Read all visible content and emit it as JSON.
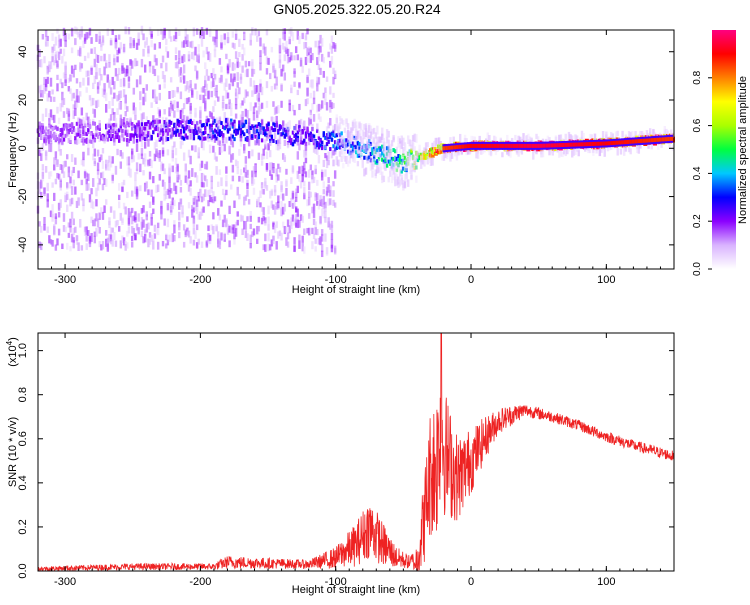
{
  "title": "GN05.2025.322.05.20.R24",
  "chart_data": [
    {
      "type": "heatmap",
      "name": "spectrogram",
      "xlabel": "Height of straight line (km)",
      "ylabel": "Frequency (Hz)",
      "xlim": [
        -320,
        150
      ],
      "ylim": [
        -50,
        49
      ],
      "xticks": [
        -300,
        -200,
        -100,
        0,
        100
      ],
      "yticks": [
        -40,
        -20,
        0,
        20,
        40
      ],
      "colorbar": {
        "label": "Normalized spectral amplitude",
        "range": [
          0.0,
          1.0
        ],
        "ticks": [
          0.0,
          0.2,
          0.4,
          0.6,
          0.8
        ],
        "tick_labels": [
          "0.0",
          "0.2",
          "0.4",
          "0.6",
          "0.8"
        ],
        "colors": [
          "#ffffff",
          "#d9b3ff",
          "#8b00ff",
          "#0000ff",
          "#00c8ff",
          "#00ff40",
          "#aaff00",
          "#ffff00",
          "#ff8000",
          "#ff0000",
          "#ff0080"
        ]
      },
      "ridge": {
        "height_km": [
          -320,
          -250,
          -180,
          -120,
          -90,
          -70,
          -50,
          -40,
          -30,
          -20,
          0,
          50,
          100,
          150
        ],
        "frequency_hz": [
          6,
          7,
          8,
          5,
          2,
          -2,
          -6,
          -4,
          -2,
          0,
          1,
          1,
          2,
          4
        ],
        "amplitude": [
          0.15,
          0.2,
          0.3,
          0.25,
          0.35,
          0.4,
          0.45,
          0.6,
          0.75,
          0.85,
          0.9,
          0.95,
          0.9,
          0.85
        ]
      }
    },
    {
      "type": "line",
      "name": "snr",
      "xlabel": "Height of straight line (km)",
      "ylabel": "SNR (10 * v/v)",
      "y_multiplier": "(x10",
      "y_multiplier_exp": "4",
      "y_multiplier_close": ")",
      "xlim": [
        -320,
        150
      ],
      "ylim": [
        0,
        1.08
      ],
      "xticks": [
        -300,
        -200,
        -100,
        0,
        100
      ],
      "yticks": [
        0.0,
        0.2,
        0.4,
        0.6,
        0.8,
        1.0
      ],
      "ytick_labels": [
        "0.0",
        "0.2",
        "0.4",
        "0.6",
        "0.8",
        "1.0"
      ],
      "color": "#ee2222",
      "envelope": {
        "x": [
          -320,
          -250,
          -190,
          -180,
          -120,
          -100,
          -85,
          -75,
          -65,
          -55,
          -45,
          -40,
          -35,
          -30,
          -25,
          -22,
          -20,
          -15,
          -10,
          0,
          10,
          20,
          35,
          40,
          60,
          80,
          100,
          120,
          150
        ],
        "mean": [
          0.01,
          0.02,
          0.02,
          0.04,
          0.03,
          0.06,
          0.12,
          0.2,
          0.12,
          0.06,
          0.04,
          0.05,
          0.22,
          0.45,
          0.5,
          0.72,
          0.55,
          0.48,
          0.42,
          0.5,
          0.6,
          0.68,
          0.72,
          0.73,
          0.7,
          0.66,
          0.61,
          0.57,
          0.52
        ],
        "noise": [
          0.01,
          0.015,
          0.015,
          0.03,
          0.02,
          0.05,
          0.1,
          0.14,
          0.1,
          0.05,
          0.03,
          0.08,
          0.2,
          0.3,
          0.35,
          0.36,
          0.3,
          0.25,
          0.2,
          0.15,
          0.1,
          0.06,
          0.04,
          0.03,
          0.025,
          0.025,
          0.025,
          0.025,
          0.025
        ]
      },
      "peak": {
        "x": -22,
        "y": 1.08
      }
    }
  ]
}
